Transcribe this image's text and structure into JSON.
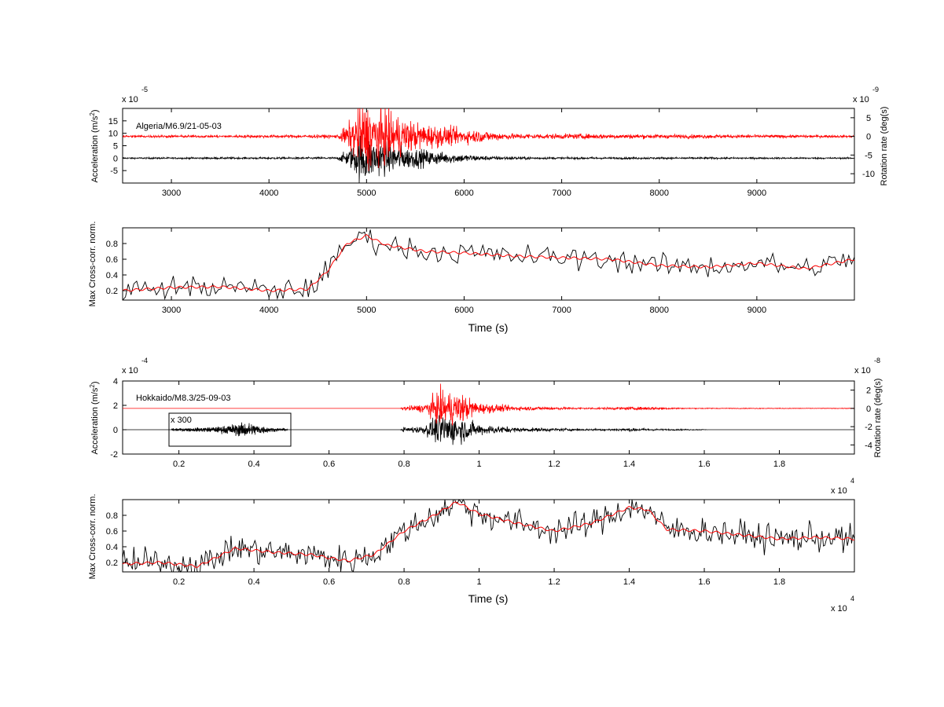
{
  "chart_data": [
    {
      "type": "line",
      "panel": "algeria-signals",
      "annotation": "Algeria/M6.9/21-05-03",
      "ylabel_left": "Acceleration (m/s²)",
      "ylabel_left_base": "Acceleration (m/s",
      "ylabel_left_sup": "2",
      "ylabel_left_end": ")",
      "ylabel_right": "Rotation rate (deg(s)",
      "xlim": [
        2500,
        10000
      ],
      "ylim_left": [
        -10,
        20
      ],
      "ylim_right": [
        -12.5,
        7.5
      ],
      "left_multiplier": "x 10",
      "left_multiplier_exp": "-5",
      "right_multiplier": "x 10",
      "right_multiplier_exp": "-9",
      "x_ticks": [
        "3000",
        "4000",
        "5000",
        "6000",
        "7000",
        "8000",
        "9000"
      ],
      "x_tick_values": [
        3000,
        4000,
        5000,
        6000,
        7000,
        8000,
        9000
      ],
      "y_left_ticks": [
        "15",
        "10",
        "5",
        "0",
        "-5"
      ],
      "y_left_tick_values": [
        15,
        10,
        5,
        0,
        -5
      ],
      "y_right_ticks": [
        "5",
        "0",
        "-5",
        "-10"
      ],
      "y_right_tick_values": [
        5,
        0,
        -5,
        -10
      ],
      "series": [
        {
          "axis": "left",
          "baseline": 0,
          "color": "#000000",
          "envelope": [
            [
              2500,
              0.2
            ],
            [
              4700,
              0.3
            ],
            [
              4850,
              3
            ],
            [
              4950,
              7
            ],
            [
              5100,
              5
            ],
            [
              5400,
              3
            ],
            [
              5800,
              1.5
            ],
            [
              6200,
              0.6
            ],
            [
              6800,
              0.3
            ],
            [
              10000,
              0.2
            ]
          ]
        },
        {
          "axis": "right",
          "baseline": 0,
          "color": "#ff0000",
          "envelope": [
            [
              2500,
              0.2
            ],
            [
              4700,
              0.3
            ],
            [
              4850,
              3
            ],
            [
              4950,
              6
            ],
            [
              5150,
              5
            ],
            [
              5500,
              2.5
            ],
            [
              5900,
              1.5
            ],
            [
              6500,
              0.5
            ],
            [
              10000,
              0.2
            ]
          ]
        }
      ]
    },
    {
      "type": "line",
      "panel": "algeria-correlation",
      "ylabel": "Max Cross-corr. norm.",
      "xlabel": "Time (s)",
      "xlim": [
        2500,
        10000
      ],
      "ylim": [
        0.08,
        1.0
      ],
      "x_ticks": [
        "3000",
        "4000",
        "5000",
        "6000",
        "7000",
        "8000",
        "9000"
      ],
      "x_tick_values": [
        3000,
        4000,
        5000,
        6000,
        7000,
        8000,
        9000
      ],
      "y_ticks": [
        "0.8",
        "0.6",
        "0.4",
        "0.2"
      ],
      "y_tick_values": [
        0.8,
        0.6,
        0.4,
        0.2
      ],
      "series": [
        {
          "color": "#ff0000",
          "kind": "smoothed",
          "x": [
            2500,
            3000,
            3500,
            4000,
            4400,
            4600,
            4800,
            5000,
            5200,
            5600,
            6000,
            6500,
            7000,
            7500,
            8000,
            8500,
            9000,
            9500,
            10000
          ],
          "y": [
            0.2,
            0.24,
            0.25,
            0.2,
            0.22,
            0.45,
            0.8,
            0.9,
            0.78,
            0.7,
            0.68,
            0.64,
            0.62,
            0.6,
            0.52,
            0.5,
            0.55,
            0.48,
            0.6
          ]
        },
        {
          "color": "#000000",
          "kind": "raw",
          "noise": 0.1
        }
      ]
    },
    {
      "type": "line",
      "panel": "hokkaido-signals",
      "annotation": "Hokkaido/M8.3/25-09-03",
      "inset_label": "x 300",
      "ylabel_left": "Acceleration (m/s²)",
      "ylabel_left_base": "Acceleration (m/s",
      "ylabel_left_sup": "2",
      "ylabel_left_end": ")",
      "ylabel_right": "Rotation rate (deg(s)",
      "xlim": [
        0.05,
        2.0
      ],
      "ylim_left": [
        -2,
        4
      ],
      "ylim_right": [
        -5,
        3
      ],
      "left_multiplier": "x 10",
      "left_multiplier_exp": "-4",
      "right_multiplier": "x 10",
      "right_multiplier_exp": "-8",
      "x_ticks": [
        "0.2",
        "0.4",
        "0.6",
        "0.8",
        "1",
        "1.2",
        "1.4",
        "1.6",
        "1.8"
      ],
      "x_tick_values": [
        0.2,
        0.4,
        0.6,
        0.8,
        1.0,
        1.2,
        1.4,
        1.6,
        1.8
      ],
      "y_left_ticks": [
        "4",
        "2",
        "0",
        "-2"
      ],
      "y_left_tick_values": [
        4,
        2,
        0,
        -2
      ],
      "y_right_ticks": [
        "2",
        "0",
        "-2",
        "-4"
      ],
      "y_right_tick_values": [
        2,
        0,
        -2,
        -4
      ],
      "series": [
        {
          "axis": "left",
          "baseline": 0,
          "color": "#000000",
          "envelope": [
            [
              0.05,
              0
            ],
            [
              0.79,
              0
            ],
            [
              0.8,
              0.15
            ],
            [
              0.85,
              0.2
            ],
            [
              0.9,
              0.9
            ],
            [
              0.95,
              0.7
            ],
            [
              1.0,
              0.3
            ],
            [
              1.1,
              0.12
            ],
            [
              1.3,
              0.05
            ],
            [
              1.4,
              0.08
            ],
            [
              1.5,
              0.04
            ],
            [
              1.6,
              0.02
            ],
            [
              1.61,
              0
            ],
            [
              2.0,
              0
            ]
          ]
        },
        {
          "axis": "right",
          "baseline": 0,
          "color": "#ff0000",
          "envelope": [
            [
              0.05,
              0
            ],
            [
              0.79,
              0
            ],
            [
              0.8,
              0.15
            ],
            [
              0.85,
              0.3
            ],
            [
              0.9,
              1.3
            ],
            [
              0.95,
              1.1
            ],
            [
              1.0,
              0.4
            ],
            [
              1.1,
              0.15
            ],
            [
              1.3,
              0.06
            ],
            [
              1.45,
              0.12
            ],
            [
              1.55,
              0.03
            ],
            [
              2.0,
              0.02
            ]
          ]
        },
        {
          "axis": "left",
          "baseline": 0,
          "color": "#000000",
          "inset": true,
          "x_range": [
            0.18,
            0.49
          ],
          "envelope": [
            [
              0.18,
              0.06
            ],
            [
              0.3,
              0.15
            ],
            [
              0.38,
              0.4
            ],
            [
              0.45,
              0.1
            ],
            [
              0.49,
              0.06
            ]
          ]
        }
      ]
    },
    {
      "type": "line",
      "panel": "hokkaido-correlation",
      "ylabel": "Max Cross-corr. norm.",
      "xlabel": "Time (s)",
      "xlim": [
        0.05,
        2.0
      ],
      "ylim": [
        0.08,
        1.0
      ],
      "x_multiplier": "x 10",
      "x_multiplier_exp": "4",
      "x_ticks": [
        "0.2",
        "0.4",
        "0.6",
        "0.8",
        "1",
        "1.2",
        "1.4",
        "1.6",
        "1.8"
      ],
      "x_tick_values": [
        0.2,
        0.4,
        0.6,
        0.8,
        1.0,
        1.2,
        1.4,
        1.6,
        1.8
      ],
      "y_ticks": [
        "0.8",
        "0.6",
        "0.4",
        "0.2"
      ],
      "y_tick_values": [
        0.8,
        0.6,
        0.4,
        0.2
      ],
      "series": [
        {
          "color": "#ff0000",
          "kind": "smoothed",
          "x": [
            0.05,
            0.15,
            0.25,
            0.35,
            0.45,
            0.55,
            0.65,
            0.72,
            0.8,
            0.88,
            0.94,
            1.0,
            1.1,
            1.2,
            1.3,
            1.4,
            1.45,
            1.5,
            1.6,
            1.7,
            1.8,
            1.9,
            2.0
          ],
          "y": [
            0.18,
            0.2,
            0.15,
            0.38,
            0.33,
            0.3,
            0.22,
            0.3,
            0.6,
            0.8,
            0.97,
            0.82,
            0.7,
            0.6,
            0.7,
            0.9,
            0.87,
            0.62,
            0.6,
            0.55,
            0.5,
            0.52,
            0.5
          ]
        },
        {
          "color": "#000000",
          "kind": "raw",
          "noise": 0.12
        }
      ]
    }
  ]
}
